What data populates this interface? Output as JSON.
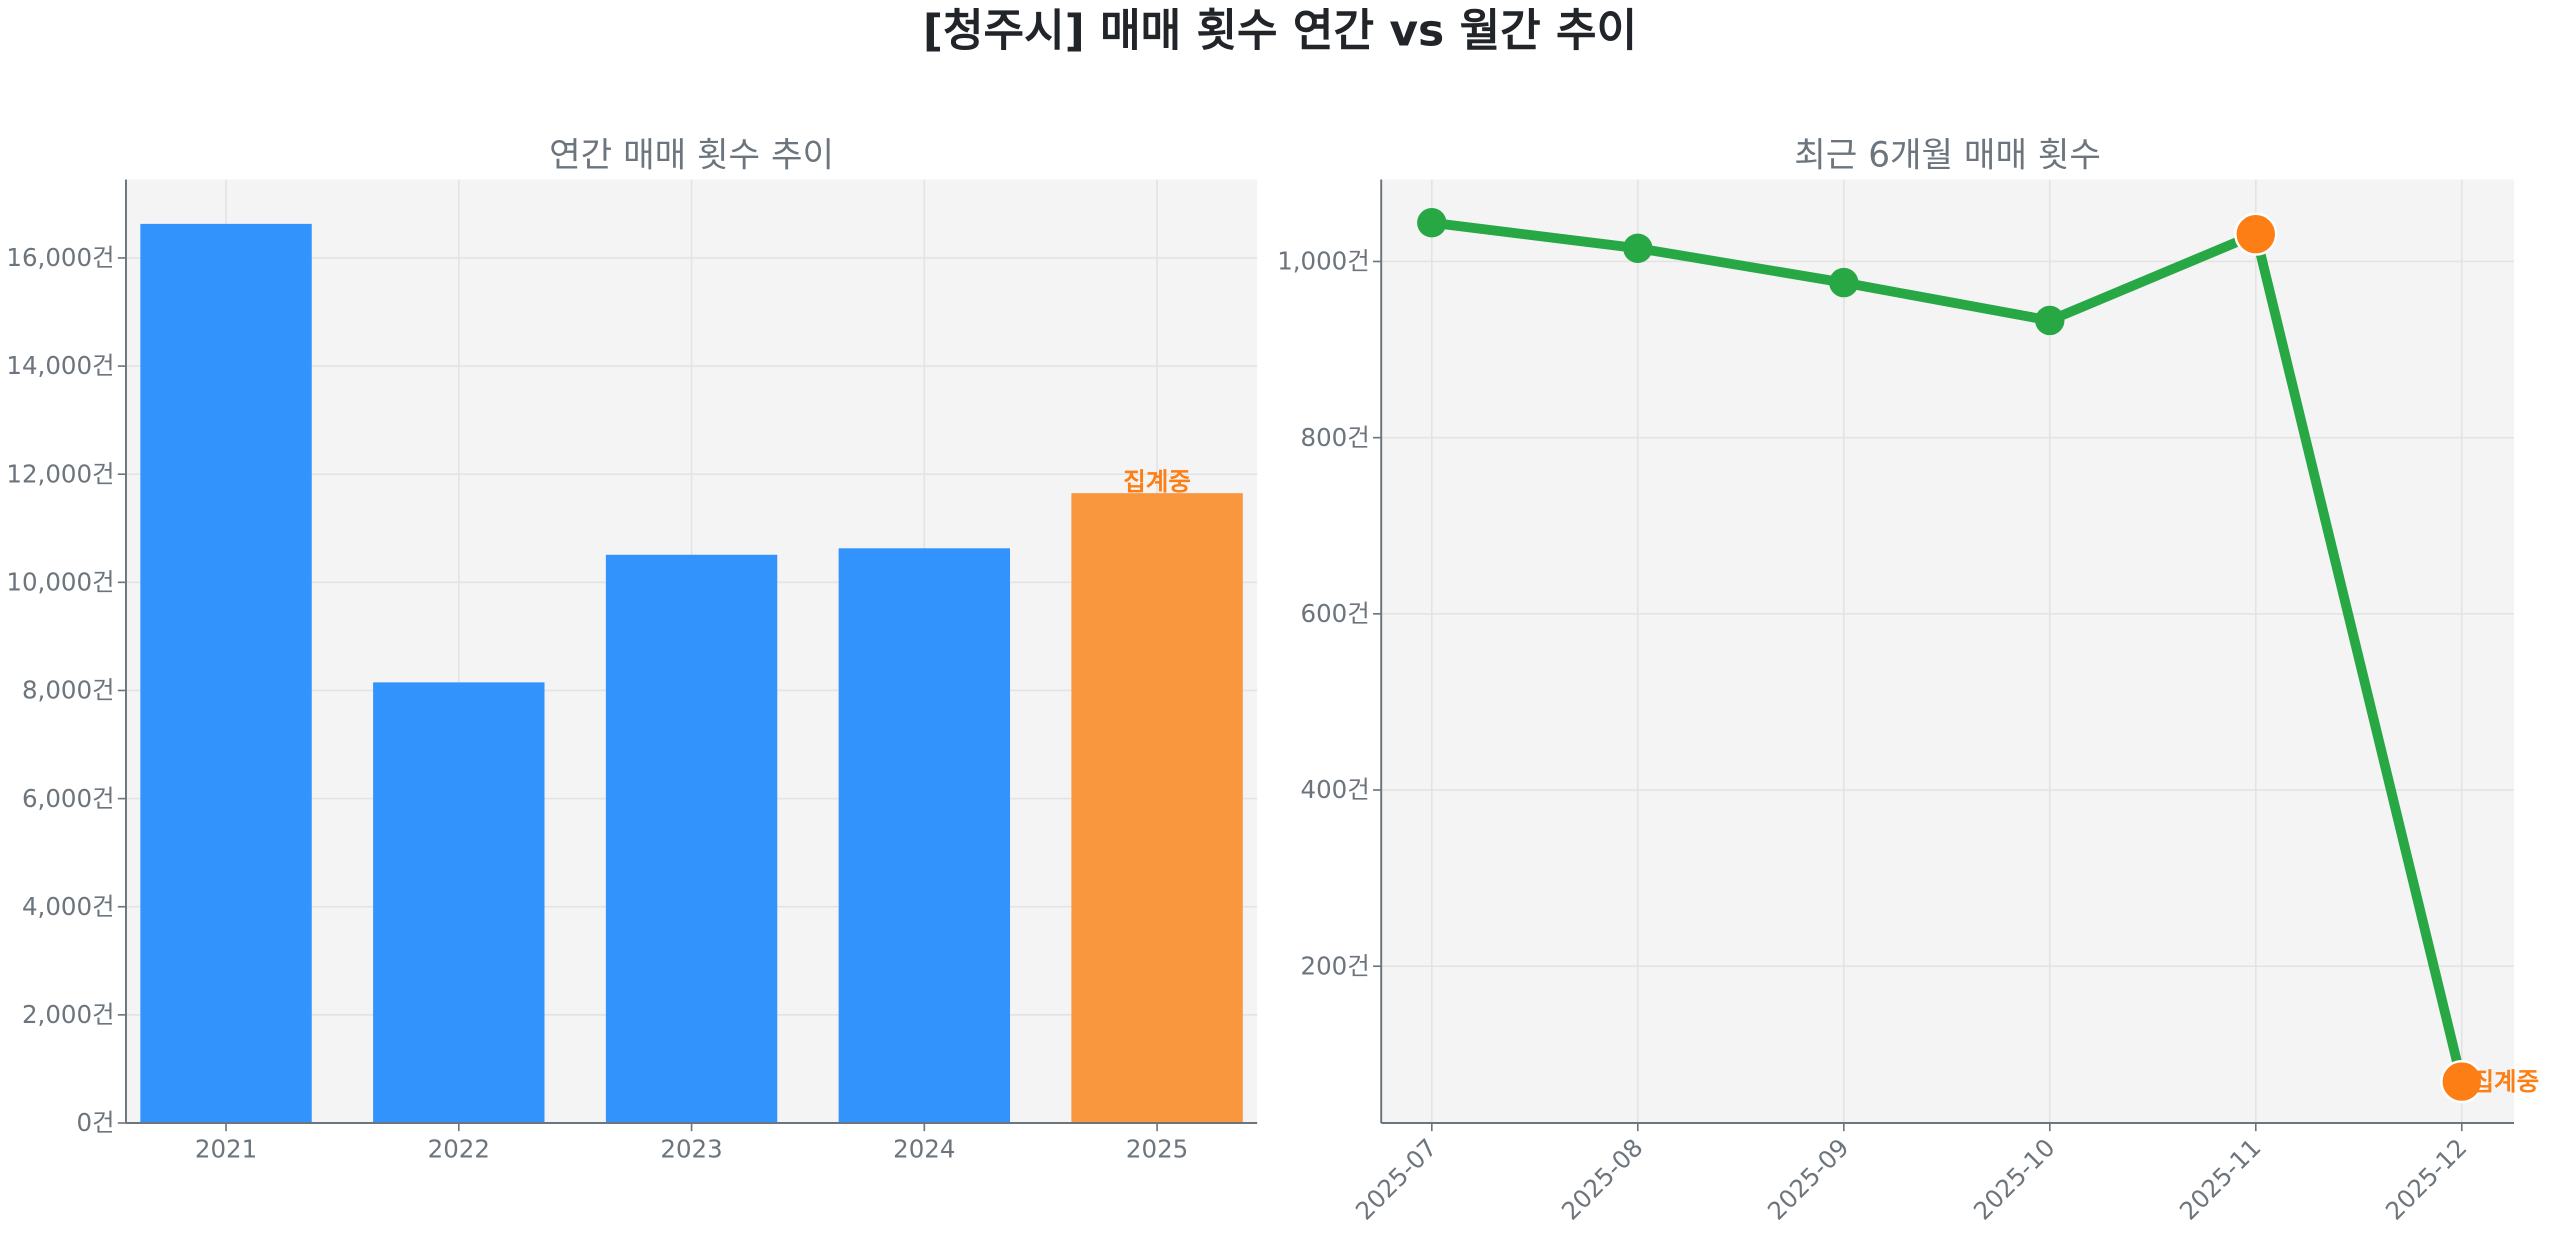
{
  "title": "[청주시] 매매 횟수 연간 vs 월간 추이",
  "colors": {
    "bar": "#3193fb",
    "bar_partial": "#f9973f",
    "line": "#28a745",
    "marker_partial": "#fd7e14",
    "plot_bg": "#f4f4f4",
    "annotation": "#fd7e14"
  },
  "chart_data": [
    {
      "type": "bar",
      "title": "연간 매매 횟수 추이",
      "categories": [
        "2021",
        "2022",
        "2023",
        "2024",
        "2025"
      ],
      "values": [
        16630,
        8150,
        10510,
        10630,
        11650
      ],
      "partial": [
        false,
        false,
        false,
        false,
        true
      ],
      "annotation": "집계중",
      "ylim": [
        0,
        17450
      ],
      "yticks": [
        0,
        2000,
        4000,
        6000,
        8000,
        10000,
        12000,
        14000,
        16000
      ],
      "ytick_labels": [
        "0건",
        "2,000건",
        "4,000건",
        "6,000건",
        "8,000건",
        "10,000건",
        "12,000건",
        "14,000건",
        "16,000건"
      ],
      "grid": true
    },
    {
      "type": "line",
      "title": "최근 6개월 매매 횟수",
      "categories": [
        "2025-07",
        "2025-08",
        "2025-09",
        "2025-10",
        "2025-11",
        "2025-12"
      ],
      "values": [
        1044,
        1015,
        976,
        933,
        1031,
        69
      ],
      "highlight": [
        false,
        false,
        false,
        false,
        true,
        true
      ],
      "annotation": "집계중",
      "ylim": [
        22,
        1093
      ],
      "yticks": [
        200,
        400,
        600,
        800,
        1000
      ],
      "ytick_labels": [
        "200건",
        "400건",
        "600건",
        "800건",
        "1,000건"
      ],
      "grid": true
    }
  ]
}
